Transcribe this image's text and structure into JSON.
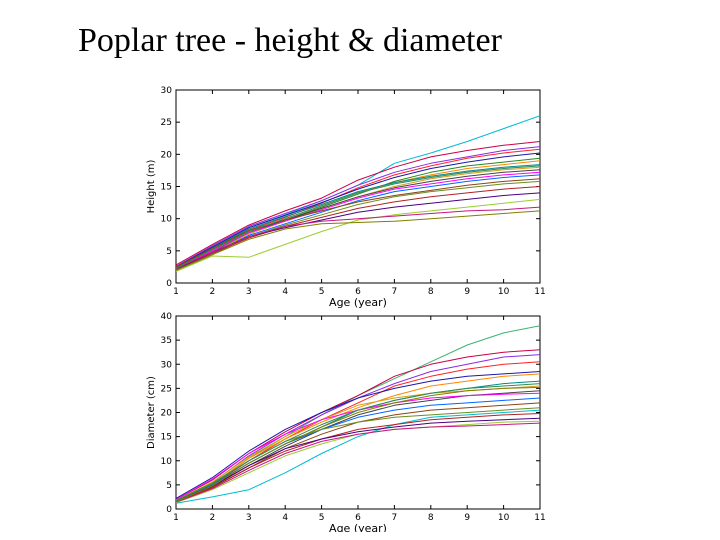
{
  "slide": {
    "title": "Poplar tree - height & diameter"
  },
  "chart_data": [
    {
      "type": "line",
      "title": "",
      "xlabel": "Age (year)",
      "ylabel": "Height (m)",
      "xlim": [
        1,
        11
      ],
      "ylim": [
        0,
        30
      ],
      "xticks": [
        1,
        2,
        3,
        4,
        5,
        6,
        7,
        8,
        9,
        10,
        11
      ],
      "yticks": [
        0,
        5,
        10,
        15,
        20,
        25,
        30
      ],
      "grid": false,
      "legend": "none",
      "x": [
        1,
        2,
        3,
        4,
        5,
        6,
        7,
        8,
        9,
        10,
        11
      ],
      "series": [
        {
          "color": "#00bcd4",
          "values": [
            2.4,
            5.5,
            8.6,
            10.6,
            12.8,
            15.2,
            18.6,
            20.2,
            22.0,
            24.0,
            26.0
          ]
        },
        {
          "color": "#cc0044",
          "values": [
            2.8,
            6.0,
            9.0,
            11.2,
            13.2,
            16.0,
            18.0,
            19.6,
            20.6,
            21.4,
            22.0
          ]
        },
        {
          "color": "#8a2be2",
          "values": [
            2.6,
            5.8,
            8.8,
            10.8,
            12.8,
            15.2,
            17.2,
            18.6,
            19.6,
            20.6,
            21.2
          ]
        },
        {
          "color": "#ff2222",
          "values": [
            2.2,
            5.2,
            8.2,
            10.2,
            12.4,
            14.8,
            16.8,
            18.2,
            19.4,
            20.2,
            20.8
          ]
        },
        {
          "color": "#1a1aaa",
          "values": [
            2.5,
            5.6,
            8.6,
            10.5,
            12.5,
            14.6,
            16.4,
            17.8,
            18.8,
            19.6,
            20.2
          ]
        },
        {
          "color": "#228b22",
          "values": [
            2.0,
            4.8,
            7.8,
            9.8,
            11.8,
            13.8,
            15.8,
            17.2,
            18.2,
            18.8,
            19.4
          ]
        },
        {
          "color": "#ff8800",
          "values": [
            2.1,
            5.0,
            8.0,
            10.0,
            12.0,
            14.0,
            15.6,
            16.8,
            17.8,
            18.4,
            19.0
          ]
        },
        {
          "color": "#008b8b",
          "values": [
            2.3,
            5.4,
            8.4,
            10.3,
            12.2,
            14.2,
            15.6,
            16.6,
            17.4,
            18.0,
            18.4
          ]
        },
        {
          "color": "#d4a017",
          "values": [
            1.9,
            4.6,
            7.6,
            9.6,
            11.6,
            13.4,
            15.0,
            16.2,
            17.0,
            17.6,
            18.0
          ]
        },
        {
          "color": "#444444",
          "values": [
            2.4,
            5.2,
            8.0,
            9.8,
            11.6,
            13.4,
            14.8,
            15.8,
            16.6,
            17.2,
            17.6
          ]
        },
        {
          "color": "#ff00ff",
          "values": [
            2.2,
            5.0,
            7.8,
            9.6,
            11.4,
            13.2,
            14.6,
            15.4,
            16.2,
            16.8,
            17.2
          ]
        },
        {
          "color": "#0066ff",
          "values": [
            2.0,
            4.6,
            7.4,
            9.2,
            11.0,
            12.8,
            14.2,
            15.0,
            15.8,
            16.4,
            16.8
          ]
        },
        {
          "color": "#8b4513",
          "values": [
            2.5,
            5.4,
            8.2,
            9.8,
            11.2,
            12.6,
            13.6,
            14.4,
            15.2,
            15.8,
            16.2
          ]
        },
        {
          "color": "#6b8e23",
          "values": [
            1.8,
            4.4,
            7.2,
            9.0,
            10.6,
            12.2,
            13.4,
            14.2,
            14.8,
            15.4,
            15.8
          ]
        },
        {
          "color": "#b22222",
          "values": [
            2.0,
            4.6,
            7.0,
            8.8,
            10.2,
            11.6,
            12.6,
            13.4,
            14.0,
            14.6,
            15.0
          ]
        },
        {
          "color": "#4b0082",
          "values": [
            2.1,
            4.8,
            7.2,
            8.6,
            9.8,
            11.0,
            11.8,
            12.4,
            13.0,
            13.6,
            14.0
          ]
        },
        {
          "color": "#9acd32",
          "values": [
            1.8,
            4.2,
            4.0,
            6.0,
            8.0,
            9.8,
            10.6,
            11.2,
            11.8,
            12.4,
            13.0
          ]
        },
        {
          "color": "#c71585",
          "values": [
            2.2,
            4.8,
            7.2,
            8.8,
            9.6,
            10.0,
            10.4,
            10.8,
            11.2,
            11.4,
            11.8
          ]
        },
        {
          "color": "#808000",
          "values": [
            2.0,
            4.4,
            6.8,
            8.4,
            9.2,
            9.4,
            9.6,
            10.0,
            10.4,
            10.8,
            11.2
          ]
        },
        {
          "color": "#2e8b57",
          "values": [
            2.3,
            5.2,
            8.0,
            10.0,
            12.0,
            14.0,
            15.4,
            16.4,
            17.2,
            17.8,
            18.2
          ]
        }
      ]
    },
    {
      "type": "line",
      "title": "",
      "xlabel": "Age (year)",
      "ylabel": "Diameter (cm)",
      "xlim": [
        1,
        11
      ],
      "ylim": [
        0,
        40
      ],
      "xticks": [
        1,
        2,
        3,
        4,
        5,
        6,
        7,
        8,
        9,
        10,
        11
      ],
      "yticks": [
        0,
        5,
        10,
        15,
        20,
        25,
        30,
        35,
        40
      ],
      "grid": false,
      "legend": "none",
      "x": [
        1,
        2,
        3,
        4,
        5,
        6,
        7,
        8,
        9,
        10,
        11
      ],
      "series": [
        {
          "color": "#3cb371",
          "values": [
            1.5,
            5.0,
            10.5,
            15.0,
            19.5,
            23.5,
            27.0,
            30.5,
            34.0,
            36.5,
            38.0
          ]
        },
        {
          "color": "#cc0044",
          "values": [
            2.0,
            6.0,
            11.5,
            16.0,
            20.0,
            23.5,
            27.5,
            30.0,
            31.5,
            32.5,
            33.0
          ]
        },
        {
          "color": "#8a2be2",
          "values": [
            1.8,
            5.5,
            11.0,
            15.5,
            19.5,
            23.0,
            26.0,
            28.5,
            30.0,
            31.5,
            32.0
          ]
        },
        {
          "color": "#ff2222",
          "values": [
            1.5,
            5.0,
            10.0,
            14.5,
            18.5,
            22.0,
            25.5,
            27.5,
            29.0,
            30.0,
            30.5
          ]
        },
        {
          "color": "#1a1aaa",
          "values": [
            2.2,
            6.5,
            12.0,
            16.5,
            20.0,
            23.0,
            25.0,
            26.5,
            27.5,
            28.0,
            28.5
          ]
        },
        {
          "color": "#ff8800",
          "values": [
            1.6,
            5.2,
            10.5,
            14.5,
            18.0,
            21.0,
            23.5,
            25.5,
            26.5,
            27.5,
            28.0
          ]
        },
        {
          "color": "#008b8b",
          "values": [
            1.4,
            4.8,
            9.5,
            13.5,
            17.0,
            20.5,
            22.5,
            24.0,
            25.0,
            26.0,
            26.5
          ]
        },
        {
          "color": "#d4a017",
          "values": [
            1.8,
            5.6,
            10.8,
            15.0,
            18.5,
            21.5,
            23.0,
            24.0,
            24.5,
            25.0,
            25.5
          ]
        },
        {
          "color": "#444444",
          "values": [
            1.5,
            4.6,
            9.0,
            13.0,
            16.5,
            19.5,
            21.5,
            22.5,
            23.5,
            24.0,
            24.5
          ]
        },
        {
          "color": "#ff00ff",
          "values": [
            2.0,
            6.2,
            11.5,
            15.5,
            18.5,
            20.5,
            22.0,
            23.0,
            23.5,
            23.8,
            24.0
          ]
        },
        {
          "color": "#0066ff",
          "values": [
            1.6,
            5.0,
            9.5,
            13.5,
            16.5,
            19.0,
            20.5,
            21.5,
            22.0,
            22.5,
            23.0
          ]
        },
        {
          "color": "#8b4513",
          "values": [
            1.4,
            4.4,
            8.5,
            12.5,
            15.5,
            18.0,
            19.5,
            20.5,
            21.0,
            21.5,
            22.0
          ]
        },
        {
          "color": "#6b8e23",
          "values": [
            1.8,
            5.4,
            10.0,
            14.0,
            16.5,
            18.0,
            19.0,
            19.5,
            20.0,
            20.5,
            21.0
          ]
        },
        {
          "color": "#00bcd4",
          "values": [
            1.2,
            2.5,
            4.0,
            7.5,
            11.5,
            15.0,
            17.5,
            19.0,
            19.5,
            20.0,
            20.5
          ]
        },
        {
          "color": "#b22222",
          "values": [
            1.5,
            4.5,
            8.5,
            12.0,
            14.5,
            16.5,
            17.5,
            18.5,
            19.0,
            19.5,
            19.8
          ]
        },
        {
          "color": "#4b0082",
          "values": [
            1.6,
            4.8,
            9.0,
            12.5,
            14.5,
            16.0,
            17.0,
            17.8,
            18.2,
            18.5,
            18.8
          ]
        },
        {
          "color": "#9acd32",
          "values": [
            1.3,
            4.0,
            7.5,
            11.0,
            13.5,
            15.5,
            16.5,
            17.0,
            17.5,
            18.0,
            18.2
          ]
        },
        {
          "color": "#c71585",
          "values": [
            1.4,
            4.2,
            8.0,
            11.5,
            14.0,
            15.5,
            16.5,
            17.0,
            17.2,
            17.5,
            17.8
          ]
        },
        {
          "color": "#2e8b57",
          "values": [
            1.7,
            5.2,
            10.0,
            14.0,
            17.5,
            20.5,
            22.5,
            24.0,
            25.0,
            25.5,
            26.0
          ]
        },
        {
          "color": "#808000",
          "values": [
            1.5,
            4.8,
            9.5,
            13.5,
            17.0,
            20.0,
            22.0,
            23.5,
            24.5,
            25.0,
            25.2
          ]
        }
      ]
    }
  ]
}
